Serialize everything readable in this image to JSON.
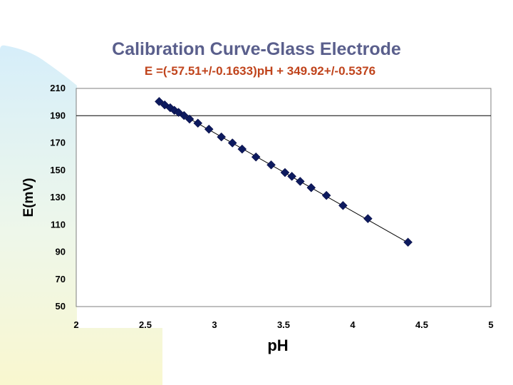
{
  "colors": {
    "title": "#5a5f8c",
    "equation": "#c0441c",
    "marker": "#0d1a5e",
    "fit_line": "#000000",
    "background_gradient_top": "#d6eefa",
    "background_gradient_bottom": "#f9f7cf"
  },
  "chart_data": {
    "type": "scatter",
    "title": "Calibration Curve-Glass Electrode",
    "subtitle": "E =(-57.51+/-0.1633)pH + 349.92+/-0.5376",
    "xlabel": "pH",
    "ylabel": "E(mV)",
    "xlim": [
      2,
      5
    ],
    "ylim": [
      50,
      210
    ],
    "xticks": [
      "2",
      "2.5",
      "3",
      "3.5",
      "4",
      "4.5",
      "5"
    ],
    "xtick_values": [
      2,
      2.5,
      3,
      3.5,
      4,
      4.5,
      5
    ],
    "yticks": [
      "210",
      "190",
      "170",
      "150",
      "130",
      "110",
      "90",
      "70",
      "50"
    ],
    "ytick_values": [
      210,
      190,
      170,
      150,
      130,
      110,
      90,
      70,
      50
    ],
    "horizontal_gridlines_at": [
      190
    ],
    "marker_shape": "diamond",
    "fit": {
      "slope": -57.51,
      "intercept": 349.92,
      "x_range": [
        2.6,
        4.4
      ]
    },
    "series": [
      {
        "name": "E(mV)",
        "x": [
          2.6,
          2.64,
          2.68,
          2.71,
          2.74,
          2.78,
          2.82,
          2.88,
          2.96,
          3.05,
          3.13,
          3.2,
          3.3,
          3.41,
          3.51,
          3.56,
          3.62,
          3.7,
          3.81,
          3.93,
          4.11,
          4.4
        ],
        "y": [
          200.4,
          197.9,
          195.8,
          193.9,
          192.4,
          190.1,
          187.5,
          184.5,
          180.1,
          174.4,
          170.0,
          165.5,
          159.7,
          153.9,
          148.3,
          145.5,
          141.8,
          137.2,
          131.5,
          124.1,
          114.5,
          97.2
        ]
      }
    ]
  }
}
